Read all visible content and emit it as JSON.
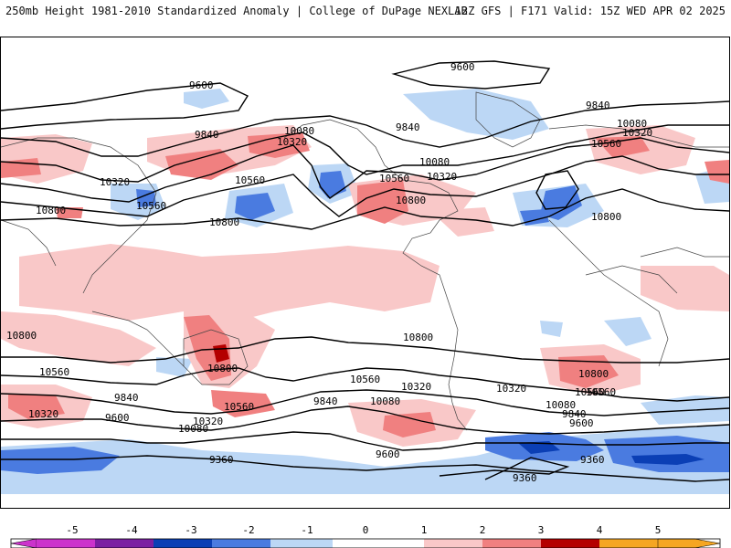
{
  "header": {
    "title_left": "250mb Height 1981-2010 Standardized Anomaly | College of DuPage NEXLAB",
    "title_right": "12Z GFS | F171 Valid: 15Z WED APR 02 2025"
  },
  "contour_labels": [
    "9600",
    "9840",
    "10080",
    "10320",
    "10560",
    "10800",
    "9360"
  ],
  "map_labels": {
    "l1": "9600",
    "l2": "9600",
    "l3": "9840",
    "l4": "9840",
    "l5": "9840",
    "l6": "10080",
    "l7": "10080",
    "l8": "10080",
    "l9": "10320",
    "l10": "10320",
    "l11": "10320",
    "l12": "10320",
    "l13": "10560",
    "l14": "10560",
    "l15": "10560",
    "l16": "10560",
    "l17": "10800",
    "l18": "10800",
    "l19": "10800",
    "l20": "10800",
    "l21": "10800",
    "l22": "10800",
    "l23": "10560",
    "l24": "10560",
    "l25": "10560",
    "l26": "10560",
    "l27": "10320",
    "l28": "10320",
    "l29": "10320",
    "l30": "10320",
    "l31": "9840",
    "l32": "9840",
    "l33": "9840",
    "l34": "10080",
    "l35": "10080",
    "l36": "10080",
    "l37": "9600",
    "l38": "9600",
    "l39": "9600",
    "l40": "9360",
    "l41": "9360",
    "l42": "9360",
    "l43": "10800",
    "l44": "10560",
    "l45": "10800"
  },
  "colorbar": {
    "ticks": [
      "-5",
      "-4",
      "-3",
      "-2",
      "-1",
      "0",
      "1",
      "2",
      "3",
      "4",
      "5"
    ],
    "colors": {
      "neg5": "#cc33cc",
      "neg4": "#7b1fa2",
      "neg3": "#0b3fb5",
      "neg2": "#4a7be0",
      "neg1": "#bcd7f5",
      "zero": "#ffffff",
      "pos1": "#f9c8c8",
      "pos2": "#f08080",
      "pos3": "#e0403c",
      "pos4": "#b40000",
      "pos5": "#f5a623"
    }
  }
}
